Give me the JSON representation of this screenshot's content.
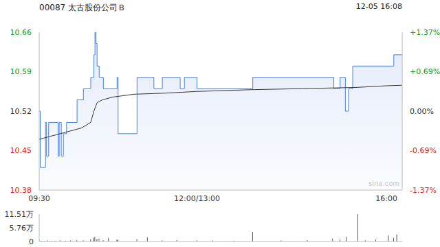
{
  "chart_data": [
    {
      "type": "line",
      "title": "00087 太古股份公司Ｂ",
      "subtitle": "12-05 16:08",
      "watermark": "sina.com",
      "xlim": [
        0,
        345
      ],
      "xticks": [
        {
          "value": 0,
          "label": "09:30"
        },
        {
          "value": 150,
          "label": "12:00/13:00"
        },
        {
          "value": 330,
          "label": "16:00"
        }
      ],
      "ylim": [
        10.38,
        10.66
      ],
      "yticks": [
        10.38,
        10.45,
        10.52,
        10.59,
        10.66
      ],
      "y2lim": [
        -1.37,
        1.37
      ],
      "y2ticks": [
        {
          "value": -1.37,
          "label": "-1.37%"
        },
        {
          "value": -0.69,
          "label": "-0.69%"
        },
        {
          "value": 0,
          "label": "0.00%"
        },
        {
          "value": 0.69,
          "label": "+0.69%"
        },
        {
          "value": 1.37,
          "label": "+1.37%"
        }
      ],
      "grid": false,
      "series": [
        {
          "type": "area",
          "line_style": "step",
          "color": "#4a7fd8",
          "x": [
            0,
            1,
            6,
            7,
            9,
            13,
            18,
            19,
            21,
            23,
            26,
            36,
            42,
            49,
            52,
            53,
            54,
            55,
            57,
            61,
            74,
            75,
            93,
            109,
            117,
            134,
            138,
            150,
            203,
            280,
            286,
            291,
            294,
            298,
            337,
            345
          ],
          "values": [
            10.52,
            10.42,
            10.5,
            10.44,
            10.5,
            10.5,
            10.44,
            10.5,
            10.44,
            10.48,
            10.5,
            10.54,
            10.56,
            10.58,
            10.62,
            10.66,
            10.64,
            10.6,
            10.58,
            10.56,
            10.58,
            10.48,
            10.58,
            10.56,
            10.58,
            10.56,
            10.58,
            10.56,
            10.58,
            10.56,
            10.58,
            10.52,
            10.56,
            10.6,
            10.62,
            10.62
          ]
        },
        {
          "color": "#333333",
          "x": [
            0,
            10,
            20,
            30,
            40,
            49,
            52,
            55,
            60,
            70,
            90,
            120,
            150,
            200,
            250,
            300,
            330,
            345
          ],
          "values": [
            10.47,
            10.475,
            10.48,
            10.485,
            10.49,
            10.5,
            10.52,
            10.535,
            10.54,
            10.545,
            10.55,
            10.552,
            10.555,
            10.558,
            10.56,
            10.562,
            10.565,
            10.566
          ]
        }
      ]
    },
    {
      "type": "bar",
      "xlim": [
        0,
        345
      ],
      "ylim": [
        0,
        11.51
      ],
      "yticks": [
        0,
        {
          "value": 5.76,
          "label": "5.76万"
        },
        {
          "value": 11.51,
          "label": "11.51万"
        }
      ],
      "color": "#555555",
      "x": [
        0,
        2,
        5,
        8,
        12,
        15,
        20,
        25,
        30,
        36,
        42,
        49,
        52,
        53,
        55,
        57,
        61,
        66,
        74,
        75,
        93,
        103,
        117,
        131,
        150,
        165,
        185,
        203,
        230,
        255,
        279,
        286,
        292,
        303,
        310,
        320,
        332,
        337,
        340
      ],
      "values": [
        0.8,
        0.3,
        0.2,
        0.4,
        0.2,
        0.3,
        0.5,
        0.3,
        0.4,
        0.6,
        0.5,
        0.9,
        1.6,
        2.0,
        1.0,
        1.2,
        0.6,
        1.5,
        0.8,
        0.7,
        1.0,
        1.8,
        0.5,
        0.6,
        0.5,
        0.4,
        0.3,
        4.0,
        0.4,
        0.6,
        1.2,
        0.8,
        2.0,
        11.51,
        0.5,
        0.8,
        2.5,
        1.5,
        3.0
      ]
    }
  ]
}
